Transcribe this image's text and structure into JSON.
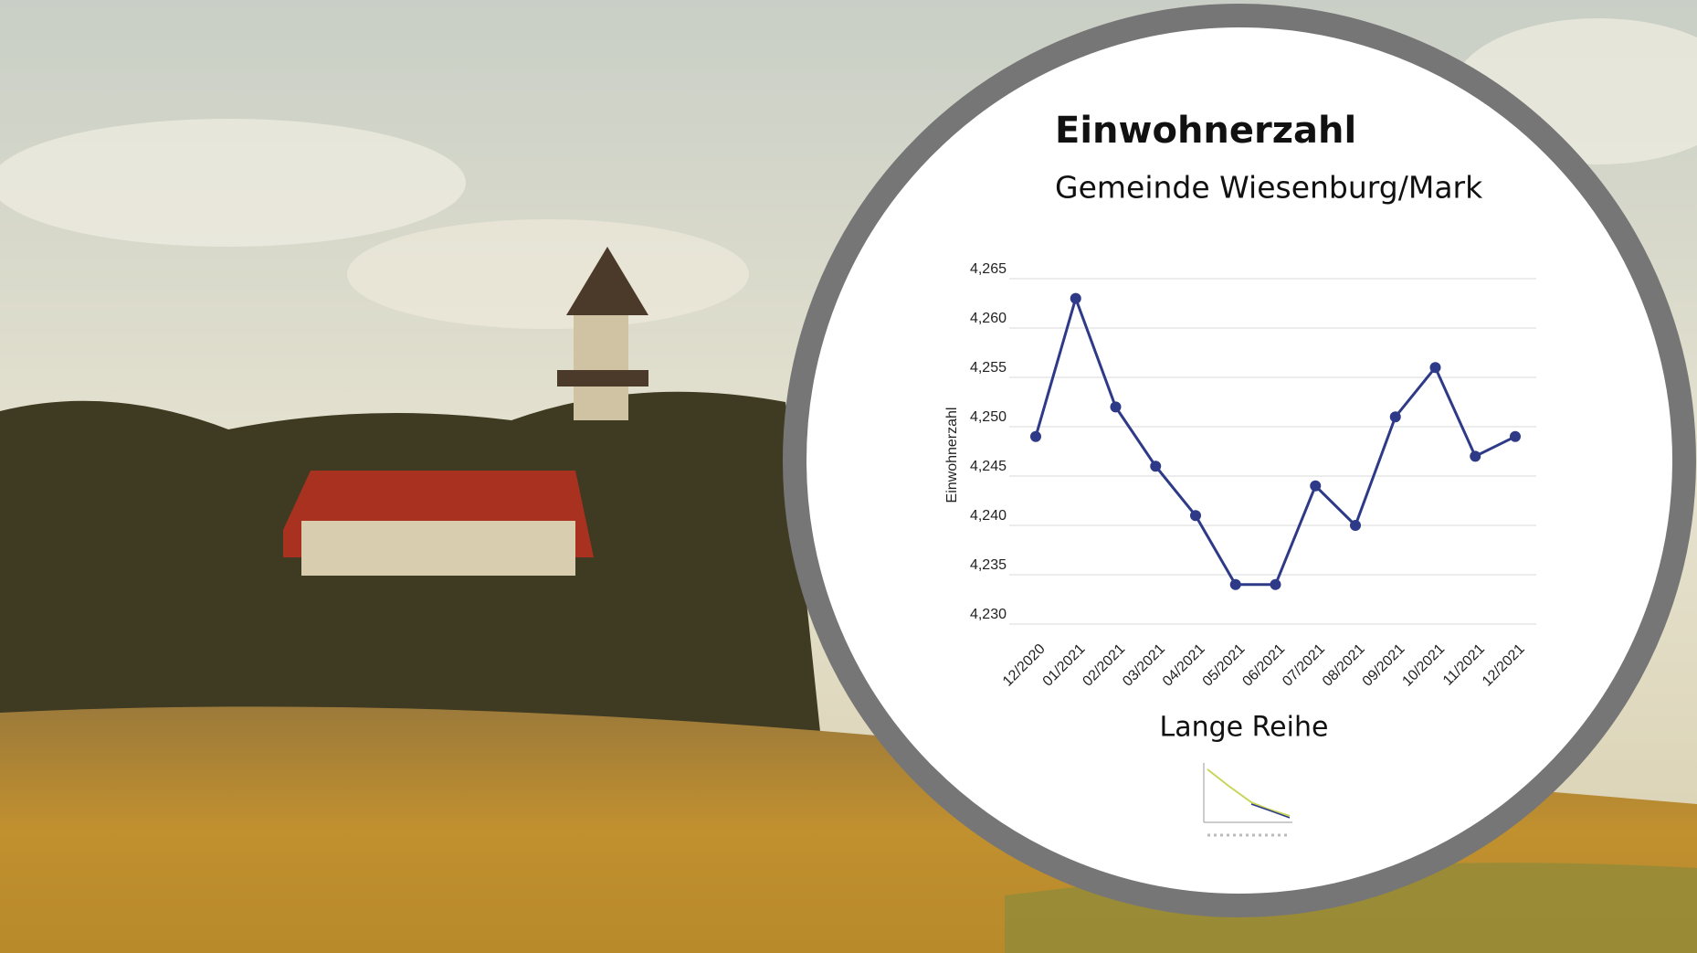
{
  "chart_data": {
    "type": "line",
    "title": "Einwohnerzahl",
    "subtitle": "Gemeinde Wiesenburg/Mark",
    "y_label": "Einwohnerzahl",
    "annotation": "Lange Reihe",
    "categories": [
      "12/2020",
      "01/2021",
      "02/2021",
      "03/2021",
      "04/2021",
      "05/2021",
      "06/2021",
      "07/2021",
      "08/2021",
      "09/2021",
      "10/2021",
      "11/2021",
      "12/2021"
    ],
    "series": [
      {
        "name": "Einwohnerzahl",
        "color": "#2e3a87",
        "values": [
          4249,
          4263,
          4252,
          4246,
          4241,
          4234,
          4234,
          4244,
          4240,
          4251,
          4256,
          4247,
          4249
        ]
      }
    ],
    "ylim": [
      4230,
      4265
    ],
    "yticks": [
      {
        "value": 4230,
        "label": "4,230"
      },
      {
        "value": 4235,
        "label": "4,235"
      },
      {
        "value": 4240,
        "label": "4,240"
      },
      {
        "value": 4245,
        "label": "4,245"
      },
      {
        "value": 4250,
        "label": "4,250"
      },
      {
        "value": 4255,
        "label": "4,255"
      },
      {
        "value": 4260,
        "label": "4,260"
      },
      {
        "value": 4265,
        "label": "4,265"
      }
    ],
    "grid": true
  }
}
